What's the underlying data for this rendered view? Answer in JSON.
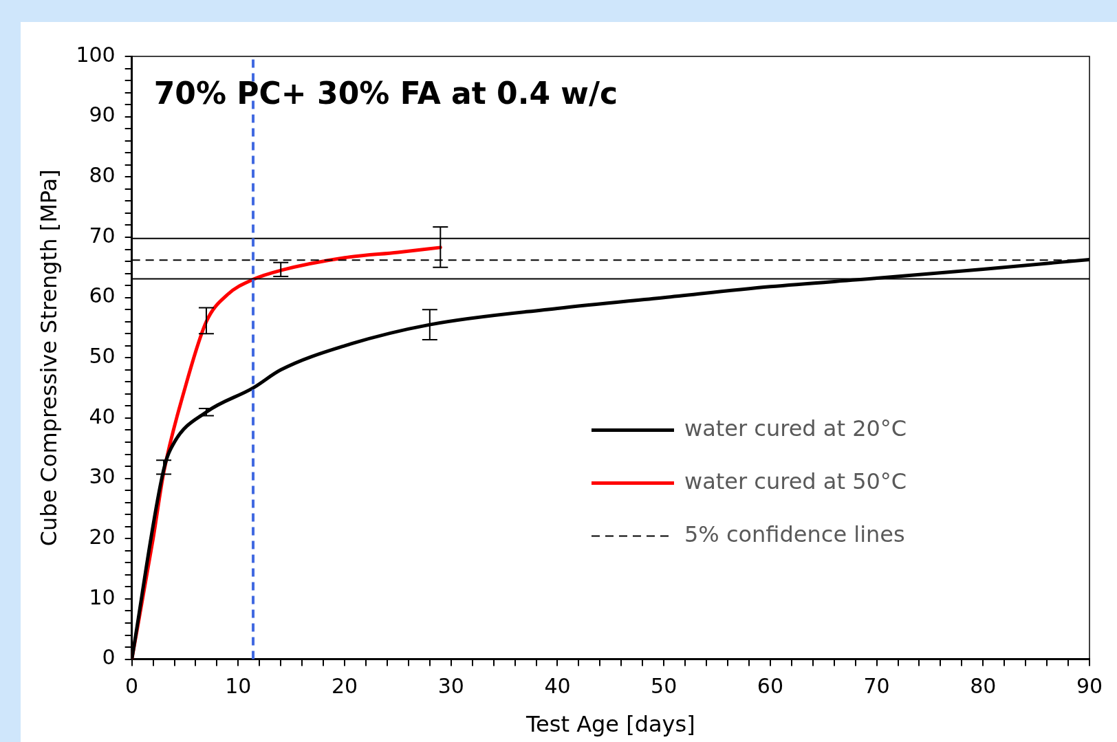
{
  "chart_data": {
    "type": "line",
    "title": "70% PC+ 30% FA at 0.4 w/c",
    "xlabel": "Test Age [days]",
    "ylabel": "Cube Compressive Strength [MPa]",
    "xlim": [
      0,
      90
    ],
    "ylim": [
      0,
      100
    ],
    "xticks": [
      0,
      {
        "value": 2,
        "label": null
      },
      {
        "value": 4,
        "label": null
      },
      {
        "value": 6,
        "label": null
      },
      {
        "value": 8,
        "label": null
      },
      10,
      {
        "value": 12,
        "label": null
      },
      {
        "value": 14,
        "label": null
      },
      {
        "value": 16,
        "label": null
      },
      {
        "value": 18,
        "label": null
      },
      20,
      {
        "value": 22,
        "label": null
      },
      {
        "value": 24,
        "label": null
      },
      {
        "value": 26,
        "label": null
      },
      {
        "value": 28,
        "label": null
      },
      30,
      {
        "value": 32,
        "label": null
      },
      {
        "value": 34,
        "label": null
      },
      {
        "value": 36,
        "label": null
      },
      {
        "value": 38,
        "label": null
      },
      40,
      {
        "value": 42,
        "label": null
      },
      {
        "value": 44,
        "label": null
      },
      {
        "value": 46,
        "label": null
      },
      {
        "value": 48,
        "label": null
      },
      50,
      {
        "value": 52,
        "label": null
      },
      {
        "value": 54,
        "label": null
      },
      {
        "value": 56,
        "label": null
      },
      {
        "value": 58,
        "label": null
      },
      60,
      {
        "value": 62,
        "label": null
      },
      {
        "value": 64,
        "label": null
      },
      {
        "value": 66,
        "label": null
      },
      {
        "value": 68,
        "label": null
      },
      70,
      {
        "value": 72,
        "label": null
      },
      {
        "value": 74,
        "label": null
      },
      {
        "value": 76,
        "label": null
      },
      {
        "value": 78,
        "label": null
      },
      80,
      {
        "value": 82,
        "label": null
      },
      {
        "value": 84,
        "label": null
      },
      {
        "value": 86,
        "label": null
      },
      {
        "value": 88,
        "label": null
      },
      90
    ],
    "yticks": [
      0,
      {
        "value": 2,
        "label": null
      },
      {
        "value": 4,
        "label": null
      },
      {
        "value": 6,
        "label": null
      },
      {
        "value": 8,
        "label": null
      },
      10,
      {
        "value": 12,
        "label": null
      },
      {
        "value": 14,
        "label": null
      },
      {
        "value": 16,
        "label": null
      },
      {
        "value": 18,
        "label": null
      },
      20,
      {
        "value": 22,
        "label": null
      },
      {
        "value": 24,
        "label": null
      },
      {
        "value": 26,
        "label": null
      },
      {
        "value": 28,
        "label": null
      },
      30,
      {
        "value": 32,
        "label": null
      },
      {
        "value": 34,
        "label": null
      },
      {
        "value": 36,
        "label": null
      },
      {
        "value": 38,
        "label": null
      },
      40,
      {
        "value": 42,
        "label": null
      },
      {
        "value": 44,
        "label": null
      },
      {
        "value": 46,
        "label": null
      },
      {
        "value": 48,
        "label": null
      },
      50,
      {
        "value": 52,
        "label": null
      },
      {
        "value": 54,
        "label": null
      },
      {
        "value": 56,
        "label": null
      },
      {
        "value": 58,
        "label": null
      },
      60,
      {
        "value": 62,
        "label": null
      },
      {
        "value": 64,
        "label": null
      },
      {
        "value": 66,
        "label": null
      },
      {
        "value": 68,
        "label": null
      },
      70,
      {
        "value": 72,
        "label": null
      },
      {
        "value": 74,
        "label": null
      },
      {
        "value": 76,
        "label": null
      },
      {
        "value": 78,
        "label": null
      },
      80,
      {
        "value": 82,
        "label": null
      },
      {
        "value": 84,
        "label": null
      },
      {
        "value": 86,
        "label": null
      },
      {
        "value": 88,
        "label": null
      },
      90,
      {
        "value": 92,
        "label": null
      },
      {
        "value": 94,
        "label": null
      },
      {
        "value": 96,
        "label": null
      },
      {
        "value": 98,
        "label": null
      },
      100
    ],
    "grid": false,
    "marker": "none",
    "legend": "right",
    "series": [
      {
        "name": "water cured at 20°C",
        "color": "#000000",
        "x": [
          0,
          3,
          4,
          7,
          11.4,
          14,
          20,
          28,
          40,
          50,
          60,
          70,
          80,
          90
        ],
        "values": [
          0,
          31.5,
          36,
          41,
          45,
          48,
          52,
          55.5,
          58.2,
          60,
          61.8,
          63.2,
          64.7,
          66.3
        ],
        "errors": [
          null,
          [
            30.7,
            33
          ],
          null,
          [
            40.4,
            41.6
          ],
          null,
          null,
          null,
          [
            53,
            58
          ],
          null,
          null,
          null,
          null,
          null,
          null
        ]
      },
      {
        "name": "water cured at 50°C",
        "color": "#ff0000",
        "x": [
          0,
          2,
          3,
          5,
          7,
          9,
          11.4,
          14,
          20,
          25,
          29
        ],
        "values": [
          0,
          20,
          31,
          45,
          56,
          60.5,
          63,
          64.5,
          66.6,
          67.5,
          68.3
        ],
        "errors": [
          null,
          null,
          null,
          null,
          [
            54,
            58.3
          ],
          null,
          null,
          [
            63.5,
            65.8
          ],
          null,
          null,
          [
            65,
            71.7
          ]
        ]
      }
    ],
    "ref_lines": [
      {
        "axis": "y",
        "value": 69.8,
        "color": "#000000",
        "line_style": "solid"
      },
      {
        "axis": "y",
        "value": 66.2,
        "color": "#000000",
        "line_style": "dashed",
        "label": "5% confidence lines"
      },
      {
        "axis": "y",
        "value": 63.1,
        "color": "#000000",
        "line_style": "solid"
      },
      {
        "axis": "x",
        "value": 11.4,
        "color": "#4169e1",
        "line_style": "dashed"
      }
    ]
  }
}
